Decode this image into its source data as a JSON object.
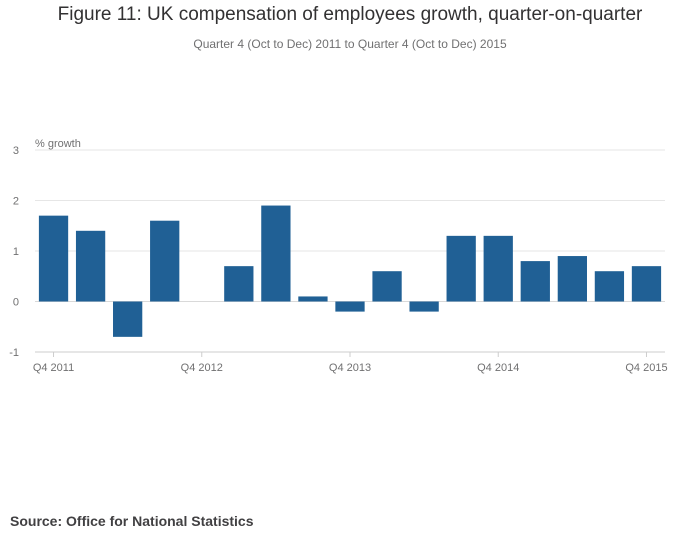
{
  "chart_data": {
    "type": "bar",
    "title": "Figure 11: UK compensation of employees growth, quarter-on-quarter",
    "subtitle": "Quarter 4 (Oct to Dec) 2011 to Quarter 4 (Oct to Dec) 2015",
    "ylabel": "% growth",
    "xlabel": "",
    "ylim": [
      -1,
      3
    ],
    "yticks": [
      -1,
      0,
      1,
      2,
      3
    ],
    "grid": true,
    "bar_color": "#206095",
    "categories": [
      "Q4 2011",
      "Q1 2012",
      "Q2 2012",
      "Q3 2012",
      "Q4 2012",
      "Q1 2013",
      "Q2 2013",
      "Q3 2013",
      "Q4 2013",
      "Q1 2014",
      "Q2 2014",
      "Q3 2014",
      "Q4 2014",
      "Q1 2015",
      "Q2 2015",
      "Q3 2015",
      "Q4 2015"
    ],
    "x_tick_labels": [
      "Q4 2011",
      "Q4 2012",
      "Q4 2013",
      "Q4 2014",
      "Q4 2015"
    ],
    "values": [
      1.7,
      1.4,
      -0.7,
      1.6,
      0.0,
      0.7,
      1.9,
      0.1,
      -0.2,
      0.6,
      -0.2,
      1.3,
      1.3,
      0.8,
      0.9,
      0.6,
      0.7
    ]
  },
  "source": "Source: Office for National Statistics"
}
